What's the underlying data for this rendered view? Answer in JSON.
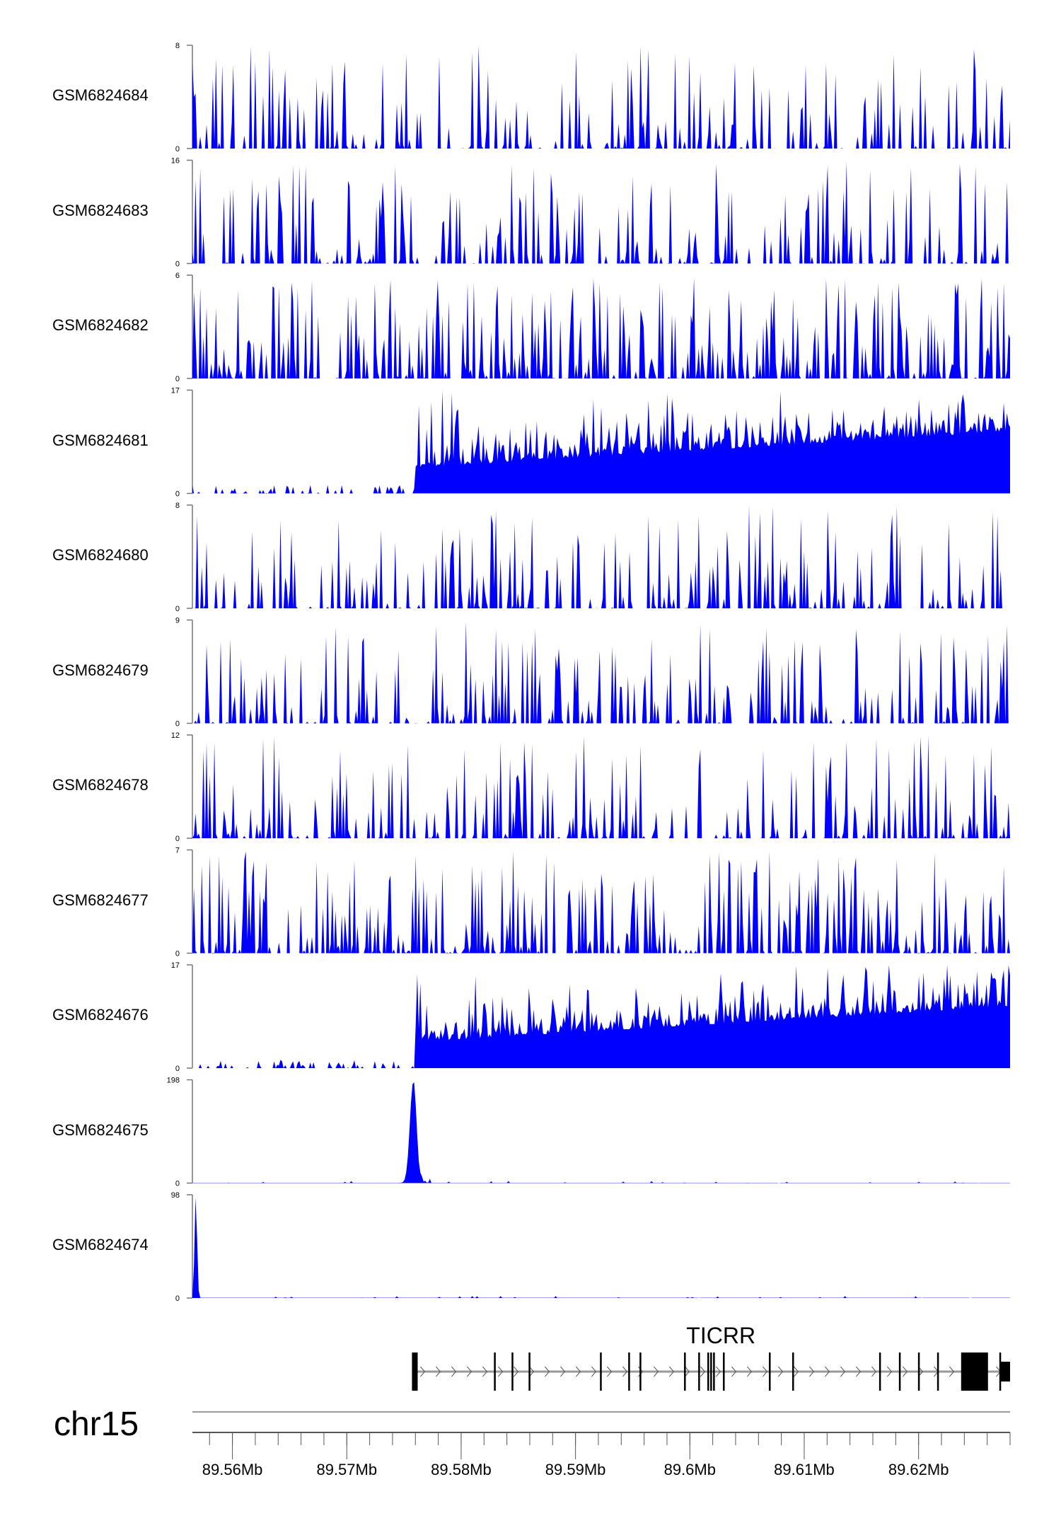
{
  "chart_data": {
    "type": "area",
    "title": "",
    "chromosome": "chr15",
    "xlim_mb": [
      89.5565,
      89.628
    ],
    "x_ticks": [
      {
        "v": 89.56,
        "label": "89.56Mb"
      },
      {
        "v": 89.57,
        "label": "89.57Mb"
      },
      {
        "v": 89.58,
        "label": "89.58Mb"
      },
      {
        "v": 89.59,
        "label": "89.59Mb"
      },
      {
        "v": 89.6,
        "label": "89.6Mb"
      },
      {
        "v": 89.61,
        "label": "89.61Mb"
      },
      {
        "v": 89.62,
        "label": "89.62Mb"
      }
    ],
    "tracks": [
      {
        "name": "GSM6824684",
        "ymax": 8,
        "ymin": 0,
        "profile": "sparse"
      },
      {
        "name": "GSM6824683",
        "ymax": 16,
        "ymin": 0,
        "profile": "sparse-gapped"
      },
      {
        "name": "GSM6824682",
        "ymax": 6,
        "ymin": 0,
        "profile": "dense"
      },
      {
        "name": "GSM6824681",
        "ymax": 17,
        "ymin": 0,
        "profile": "step-up",
        "step_mb": 89.576
      },
      {
        "name": "GSM6824680",
        "ymax": 8,
        "ymin": 0,
        "profile": "sparse"
      },
      {
        "name": "GSM6824679",
        "ymax": 9,
        "ymin": 0,
        "profile": "sparse"
      },
      {
        "name": "GSM6824678",
        "ymax": 12,
        "ymin": 0,
        "profile": "sparse"
      },
      {
        "name": "GSM6824677",
        "ymax": 7,
        "ymin": 0,
        "profile": "dense"
      },
      {
        "name": "GSM6824676",
        "ymax": 17,
        "ymin": 0,
        "profile": "step-up",
        "step_mb": 89.576
      },
      {
        "name": "GSM6824675",
        "ymax": 198,
        "ymin": 0,
        "profile": "single-peak",
        "peak_mb": 89.5758
      },
      {
        "name": "GSM6824674",
        "ymax": 98,
        "ymin": 0,
        "profile": "single-peak",
        "peak_mb": 89.5568
      }
    ],
    "gene": {
      "name": "TICRR",
      "strand": "+",
      "start_mb": 89.5757,
      "end_mb": 89.628,
      "exons": [
        [
          89.5757,
          89.5762
        ],
        [
          89.58287,
          89.58302
        ],
        [
          89.58441,
          89.58453
        ],
        [
          89.5859,
          89.58602
        ],
        [
          89.59214,
          89.5922
        ],
        [
          89.59461,
          89.5947
        ],
        [
          89.5956,
          89.5957
        ],
        [
          89.59949,
          89.59955
        ],
        [
          89.60073,
          89.6008
        ],
        [
          89.60153,
          89.60158
        ],
        [
          89.60178,
          89.60183
        ],
        [
          89.60203,
          89.60208
        ],
        [
          89.60289,
          89.60295
        ],
        [
          89.60691,
          89.60697
        ],
        [
          89.60895,
          89.60903
        ],
        [
          89.61655,
          89.6166
        ],
        [
          89.61828,
          89.61834
        ],
        [
          89.61995,
          89.62003
        ],
        [
          89.62162,
          89.62169
        ],
        [
          89.62372,
          89.62607
        ],
        [
          89.62706,
          89.62712
        ],
        [
          89.62712,
          89.628
        ]
      ]
    }
  },
  "colors": {
    "signal": "#0000FF",
    "axis": "#888888"
  }
}
